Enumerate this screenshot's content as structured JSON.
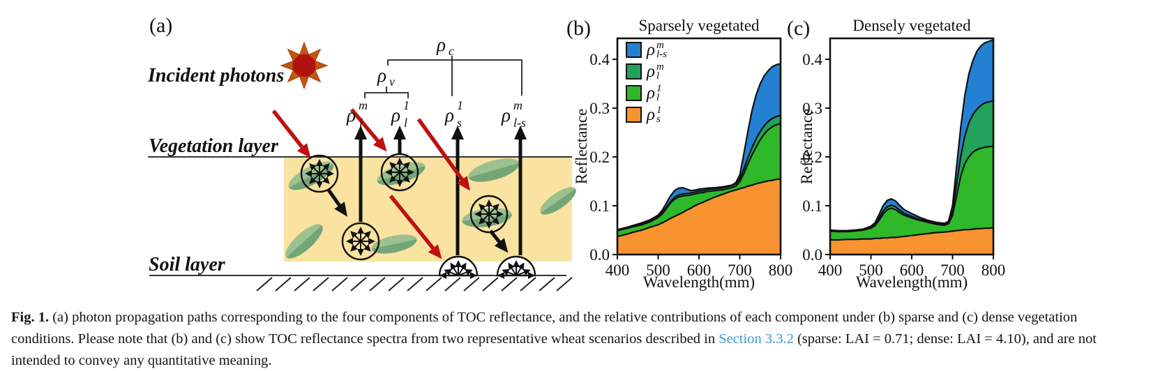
{
  "diagram": {
    "panel_label": "(a)",
    "incident_photons": "Incident photons",
    "vegetation_layer": "Vegetation layer",
    "soil_layer": "Soil layer",
    "rho_c": {
      "base": "ρ",
      "sub": "c"
    },
    "rho_v": {
      "base": "ρ",
      "sub": "v"
    },
    "rho_l_m": {
      "base": "ρ",
      "sub": "l",
      "sup": "m"
    },
    "rho_l_1": {
      "base": "ρ",
      "sub": "l",
      "sup": "1"
    },
    "rho_s_1": {
      "base": "ρ",
      "sub": "s",
      "sup": "1"
    },
    "rho_ls_m": {
      "base": "ρ",
      "sub": "l-s",
      "sup": "m"
    },
    "colors": {
      "sun_core": "#b01210",
      "sun_rays": "#c2570f",
      "vegetation_box": "#fae2a0",
      "leaf_light": "#9cc08f",
      "leaf_dark": "#74a577",
      "incident_arrow": "#c01010",
      "scattered_arrow": "#111111"
    }
  },
  "chart_data": [
    {
      "type": "area",
      "panel_label": "(b)",
      "title": "Sparsely vegetated",
      "ylabel": "Reflectance",
      "xlabel": "Wavelength(mm)",
      "xlim": [
        400,
        800
      ],
      "ylim": [
        0,
        0.4429
      ],
      "x_ticks": [
        400,
        500,
        600,
        700,
        800
      ],
      "y_ticks": [
        "0.0",
        "0.1",
        "0.2",
        "0.3",
        "0.4"
      ],
      "legend": true,
      "x": [
        400,
        420,
        440,
        460,
        480,
        500,
        510,
        520,
        530,
        540,
        550,
        560,
        570,
        580,
        590,
        600,
        610,
        620,
        640,
        660,
        680,
        690,
        700,
        710,
        720,
        730,
        740,
        750,
        760,
        770,
        780,
        790,
        800
      ],
      "series": [
        {
          "name": "rho_l-s_m",
          "label": {
            "base": "ρ",
            "sub": "l-s",
            "sup": "m"
          },
          "color": "#2480d2",
          "cumulative": [
            0.051,
            0.055,
            0.06,
            0.065,
            0.071,
            0.081,
            0.091,
            0.105,
            0.12,
            0.131,
            0.136,
            0.137,
            0.134,
            0.131,
            0.132,
            0.134,
            0.135,
            0.136,
            0.137,
            0.139,
            0.142,
            0.147,
            0.163,
            0.206,
            0.253,
            0.295,
            0.327,
            0.35,
            0.366,
            0.377,
            0.385,
            0.389,
            0.391
          ]
        },
        {
          "name": "rho_l_m",
          "label": {
            "base": "ρ",
            "sub": "l",
            "sup": "m"
          },
          "color": "#22a25b",
          "cumulative": [
            0.05,
            0.054,
            0.058,
            0.063,
            0.069,
            0.078,
            0.086,
            0.097,
            0.108,
            0.117,
            0.122,
            0.124,
            0.125,
            0.126,
            0.128,
            0.13,
            0.131,
            0.133,
            0.135,
            0.137,
            0.141,
            0.145,
            0.155,
            0.175,
            0.198,
            0.219,
            0.237,
            0.252,
            0.264,
            0.273,
            0.279,
            0.283,
            0.285
          ]
        },
        {
          "name": "rho_l_1",
          "label": {
            "base": "ρ",
            "sub": "l",
            "sup": "1"
          },
          "color": "#2eb82a",
          "cumulative": [
            0.049,
            0.053,
            0.057,
            0.061,
            0.067,
            0.076,
            0.083,
            0.094,
            0.105,
            0.113,
            0.118,
            0.12,
            0.121,
            0.122,
            0.124,
            0.126,
            0.127,
            0.129,
            0.131,
            0.133,
            0.137,
            0.14,
            0.149,
            0.166,
            0.186,
            0.204,
            0.22,
            0.235,
            0.247,
            0.256,
            0.262,
            0.266,
            0.268
          ]
        },
        {
          "name": "rho_s_1",
          "label": {
            "base": "ρ",
            "sub": "s",
            "sup": "1"
          },
          "color": "#f8932f",
          "cumulative": [
            0.037,
            0.041,
            0.046,
            0.05,
            0.056,
            0.061,
            0.065,
            0.069,
            0.074,
            0.078,
            0.082,
            0.086,
            0.091,
            0.095,
            0.1,
            0.104,
            0.107,
            0.111,
            0.118,
            0.124,
            0.13,
            0.132,
            0.135,
            0.137,
            0.14,
            0.142,
            0.145,
            0.147,
            0.149,
            0.151,
            0.152,
            0.154,
            0.155
          ]
        }
      ]
    },
    {
      "type": "area",
      "panel_label": "(c)",
      "title": "Densely vegetated",
      "ylabel": "Reflectance",
      "xlabel": "Wavelength(mm)",
      "xlim": [
        400,
        800
      ],
      "ylim": [
        0,
        0.4429
      ],
      "x_ticks": [
        400,
        500,
        600,
        700,
        800
      ],
      "y_ticks": [
        "0.0",
        "0.1",
        "0.2",
        "0.3",
        "0.4"
      ],
      "legend": false,
      "x": [
        400,
        420,
        440,
        460,
        480,
        500,
        510,
        520,
        530,
        540,
        550,
        560,
        570,
        580,
        590,
        600,
        610,
        620,
        640,
        660,
        680,
        690,
        700,
        710,
        720,
        730,
        740,
        750,
        760,
        770,
        780,
        790,
        800
      ],
      "series": [
        {
          "name": "rho_l-s_m",
          "label": {
            "base": "ρ",
            "sub": "l-s",
            "sup": "m"
          },
          "color": "#2480d2",
          "cumulative": [
            0.05,
            0.049,
            0.049,
            0.05,
            0.052,
            0.058,
            0.065,
            0.082,
            0.1,
            0.111,
            0.114,
            0.11,
            0.101,
            0.093,
            0.088,
            0.084,
            0.08,
            0.076,
            0.07,
            0.066,
            0.064,
            0.068,
            0.1,
            0.18,
            0.26,
            0.325,
            0.37,
            0.398,
            0.417,
            0.428,
            0.434,
            0.437,
            0.44
          ]
        },
        {
          "name": "rho_l_m",
          "label": {
            "base": "ρ",
            "sub": "l",
            "sup": "m"
          },
          "color": "#22a25b",
          "cumulative": [
            0.049,
            0.048,
            0.048,
            0.049,
            0.051,
            0.056,
            0.062,
            0.075,
            0.089,
            0.098,
            0.101,
            0.098,
            0.091,
            0.085,
            0.081,
            0.078,
            0.075,
            0.072,
            0.068,
            0.064,
            0.062,
            0.065,
            0.09,
            0.145,
            0.2,
            0.242,
            0.27,
            0.287,
            0.298,
            0.306,
            0.311,
            0.313,
            0.315
          ]
        },
        {
          "name": "rho_l_1",
          "label": {
            "base": "ρ",
            "sub": "l",
            "sup": "1"
          },
          "color": "#2eb82a",
          "cumulative": [
            0.048,
            0.047,
            0.047,
            0.048,
            0.05,
            0.054,
            0.059,
            0.07,
            0.083,
            0.092,
            0.095,
            0.092,
            0.086,
            0.081,
            0.078,
            0.075,
            0.072,
            0.07,
            0.066,
            0.062,
            0.06,
            0.063,
            0.08,
            0.12,
            0.16,
            0.186,
            0.2,
            0.21,
            0.215,
            0.218,
            0.22,
            0.221,
            0.222
          ]
        },
        {
          "name": "rho_s_1",
          "label": {
            "base": "ρ",
            "sub": "s",
            "sup": "1"
          },
          "color": "#f8932f",
          "cumulative": [
            0.03,
            0.03,
            0.031,
            0.031,
            0.032,
            0.032,
            0.033,
            0.033,
            0.034,
            0.034,
            0.035,
            0.035,
            0.036,
            0.037,
            0.038,
            0.039,
            0.04,
            0.041,
            0.043,
            0.045,
            0.046,
            0.047,
            0.048,
            0.049,
            0.05,
            0.051,
            0.051,
            0.052,
            0.053,
            0.053,
            0.054,
            0.054,
            0.055
          ]
        }
      ]
    }
  ],
  "caption": {
    "prefix": "Fig. 1.",
    "body1": " (a) photon propagation paths corresponding to the four components of TOC reflectance, and the relative contributions of each component under (b) sparse and (c) dense vegetation conditions. Please note that (b) and (c) show TOC reflectance spectra from two representative wheat scenarios described in ",
    "link": "Section 3.3.2",
    "body2": " (sparse: LAI = 0.71; dense: LAI = 4.10), and are not intended to convey any quantitative meaning.",
    "link_color": "#3d97d0"
  }
}
